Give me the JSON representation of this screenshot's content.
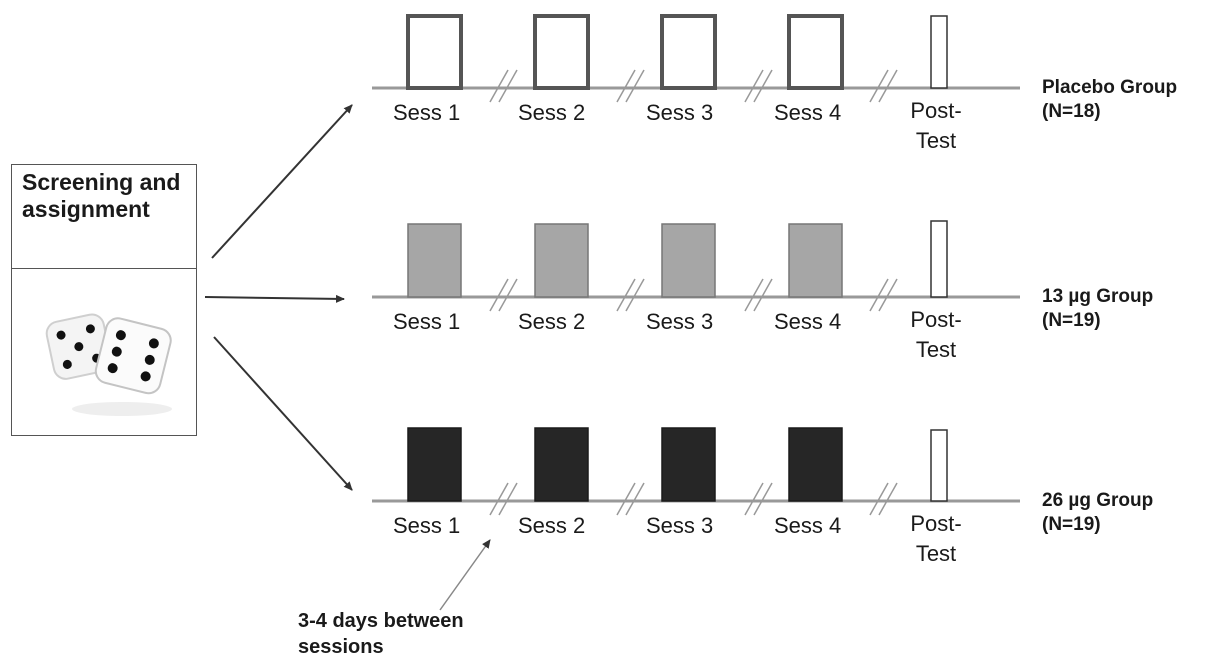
{
  "screening": {
    "label": "Screening and assignment",
    "icon": "dice-icon"
  },
  "groups": [
    {
      "name": "Placebo Group",
      "n": "(N=18)",
      "fill": "#ffffff",
      "stroke": "#555555",
      "sessions": [
        "Sess 1",
        "Sess 2",
        "Sess 3",
        "Sess 4"
      ],
      "post": [
        "Post-",
        "Test"
      ]
    },
    {
      "name": "13 µg Group",
      "n": "(N=19)",
      "fill": "#a6a6a6",
      "stroke": "#777777",
      "sessions": [
        "Sess 1",
        "Sess 2",
        "Sess 3",
        "Sess 4"
      ],
      "post": [
        "Post-",
        "Test"
      ]
    },
    {
      "name": "26 µg Group",
      "n": "(N=19)",
      "fill": "#262626",
      "stroke": "#1a1a1a",
      "sessions": [
        "Sess 1",
        "Sess 2",
        "Sess 3",
        "Sess 4"
      ],
      "post": [
        "Post-",
        "Test"
      ]
    }
  ],
  "note": "3-4 days between sessions",
  "colors": {
    "line": "#999999",
    "arrow": "#333333",
    "post_fill": "#ffffff"
  }
}
